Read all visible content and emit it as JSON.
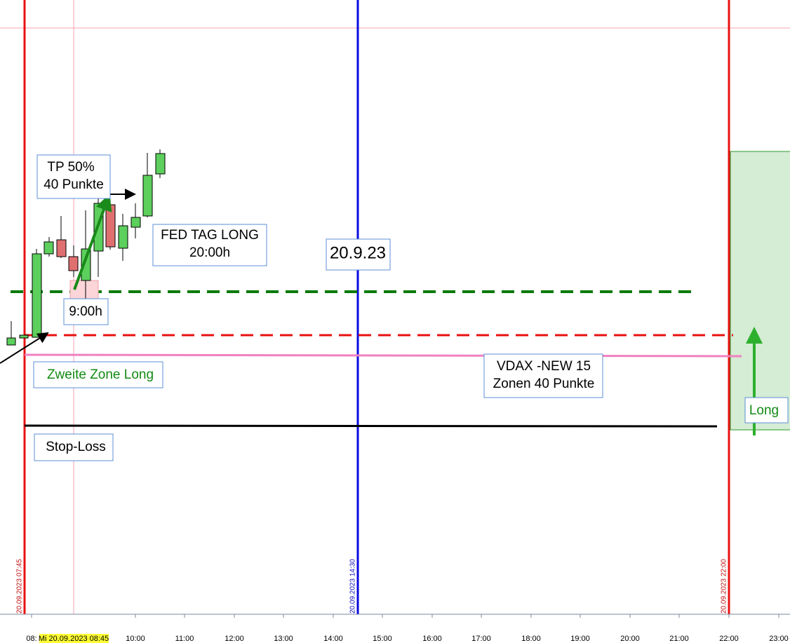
{
  "annotations": {
    "tp": [
      "TP 50%",
      "40 Punkte"
    ],
    "fed": [
      "FED TAG LONG",
      "20:00h"
    ],
    "date": "20.9.23",
    "nine": "9:00h",
    "zone": "Zweite Zone Long",
    "vdax": [
      "VDAX -NEW 15",
      "Zonen 40 Punkte"
    ],
    "stop": "Stop-Loss",
    "long": "Long"
  },
  "vertical_labels": [
    "20.09.2023 07:45",
    "20.09.2023 14:30",
    "20.09.2023 22:00"
  ],
  "time_axis": {
    "cursor": "Mi 20.09.2023 08:45",
    "labels": [
      "08:",
      "10:00",
      "11:00",
      "12:00",
      "13:00",
      "14:00",
      "15:00",
      "16:00",
      "17:00",
      "18:00",
      "19:00",
      "20:00",
      "21:00",
      "22:00",
      "23:00"
    ]
  }
}
